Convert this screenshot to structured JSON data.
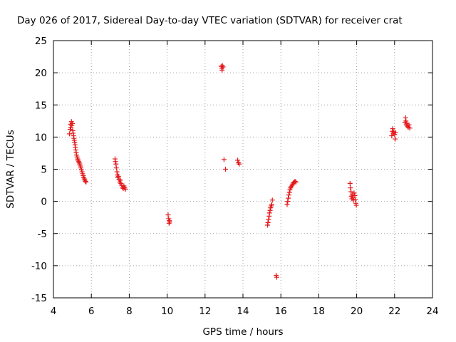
{
  "chart_data": {
    "type": "scatter",
    "title": "Day 026 of 2017, Sidereal Day-to-day VTEC variation (SDTVAR) for receiver crat",
    "xlabel": "GPS time / hours",
    "ylabel": "SDTVAR / TECUs",
    "xlim": [
      4,
      24
    ],
    "ylim": [
      -15,
      25
    ],
    "xticks": [
      4,
      6,
      8,
      10,
      12,
      14,
      16,
      18,
      20,
      22,
      24
    ],
    "yticks": [
      -15,
      -10,
      -5,
      0,
      5,
      10,
      15,
      20,
      25
    ],
    "grid": true,
    "marker": "+",
    "color": "#e41a1c",
    "series": [
      {
        "name": "SDTVAR",
        "points": [
          [
            4.85,
            10.5
          ],
          [
            4.88,
            11.2
          ],
          [
            4.9,
            12.0
          ],
          [
            4.92,
            11.5
          ],
          [
            4.95,
            12.4
          ],
          [
            4.97,
            11.8
          ],
          [
            5.0,
            12.1
          ],
          [
            5.02,
            11.0
          ],
          [
            5.04,
            10.6
          ],
          [
            5.06,
            10.2
          ],
          [
            5.08,
            9.8
          ],
          [
            5.1,
            9.5
          ],
          [
            5.12,
            9.2
          ],
          [
            5.14,
            8.8
          ],
          [
            5.16,
            8.4
          ],
          [
            5.18,
            8.0
          ],
          [
            5.2,
            7.6
          ],
          [
            5.22,
            7.2
          ],
          [
            5.25,
            6.9
          ],
          [
            5.28,
            6.6
          ],
          [
            5.3,
            6.4
          ],
          [
            5.33,
            6.2
          ],
          [
            5.36,
            6.0
          ],
          [
            5.39,
            5.8
          ],
          [
            5.42,
            5.5
          ],
          [
            5.45,
            5.2
          ],
          [
            5.48,
            4.9
          ],
          [
            5.51,
            4.6
          ],
          [
            5.54,
            4.3
          ],
          [
            5.57,
            4.0
          ],
          [
            5.6,
            3.7
          ],
          [
            5.63,
            3.5
          ],
          [
            5.66,
            3.3
          ],
          [
            5.69,
            3.1
          ],
          [
            5.72,
            3.0
          ],
          [
            7.25,
            6.6
          ],
          [
            7.27,
            6.2
          ],
          [
            7.3,
            5.8
          ],
          [
            7.32,
            5.2
          ],
          [
            7.35,
            4.6
          ],
          [
            7.38,
            4.1
          ],
          [
            7.4,
            3.7
          ],
          [
            7.43,
            3.9
          ],
          [
            7.46,
            3.4
          ],
          [
            7.5,
            3.0
          ],
          [
            7.53,
            3.3
          ],
          [
            7.56,
            2.8
          ],
          [
            7.6,
            2.5
          ],
          [
            7.64,
            2.2
          ],
          [
            7.68,
            2.0
          ],
          [
            7.72,
            2.4
          ],
          [
            7.76,
            2.1
          ],
          [
            7.8,
            1.9
          ],
          [
            10.05,
            -2.1
          ],
          [
            10.08,
            -2.7
          ],
          [
            10.11,
            -3.0
          ],
          [
            10.14,
            -3.2
          ],
          [
            10.1,
            -3.4
          ],
          [
            12.85,
            21.0
          ],
          [
            12.88,
            20.7
          ],
          [
            12.9,
            20.4
          ],
          [
            12.92,
            21.1
          ],
          [
            12.95,
            20.9
          ],
          [
            13.0,
            6.5
          ],
          [
            13.08,
            5.0
          ],
          [
            13.72,
            6.4
          ],
          [
            13.76,
            6.0
          ],
          [
            13.8,
            5.8
          ],
          [
            15.3,
            -3.7
          ],
          [
            15.32,
            -3.3
          ],
          [
            15.35,
            -2.8
          ],
          [
            15.38,
            -2.3
          ],
          [
            15.4,
            -1.8
          ],
          [
            15.43,
            -1.4
          ],
          [
            15.46,
            -1.0
          ],
          [
            15.49,
            -0.7
          ],
          [
            15.52,
            -0.5
          ],
          [
            15.55,
            0.2
          ],
          [
            15.75,
            -11.5
          ],
          [
            15.78,
            -11.8
          ],
          [
            16.33,
            -0.5
          ],
          [
            16.36,
            0.0
          ],
          [
            16.39,
            0.5
          ],
          [
            16.42,
            1.0
          ],
          [
            16.45,
            1.4
          ],
          [
            16.48,
            1.8
          ],
          [
            16.51,
            2.1
          ],
          [
            16.55,
            2.3
          ],
          [
            16.59,
            2.5
          ],
          [
            16.63,
            2.7
          ],
          [
            16.67,
            2.9
          ],
          [
            16.71,
            3.0
          ],
          [
            16.75,
            3.1
          ],
          [
            16.8,
            3.0
          ],
          [
            19.65,
            2.8
          ],
          [
            19.67,
            2.1
          ],
          [
            19.7,
            1.5
          ],
          [
            19.72,
            0.8
          ],
          [
            19.75,
            0.4
          ],
          [
            19.78,
            1.0
          ],
          [
            19.8,
            0.6
          ],
          [
            19.83,
            0.2
          ],
          [
            19.86,
            1.3
          ],
          [
            19.9,
            0.9
          ],
          [
            19.93,
            0.3
          ],
          [
            19.96,
            -0.3
          ],
          [
            19.98,
            -0.6
          ],
          [
            21.85,
            10.2
          ],
          [
            21.88,
            10.9
          ],
          [
            21.9,
            11.3
          ],
          [
            21.93,
            10.6
          ],
          [
            21.96,
            10.8
          ],
          [
            22.0,
            10.4
          ],
          [
            22.03,
            9.7
          ],
          [
            22.05,
            10.7
          ],
          [
            22.55,
            12.3
          ],
          [
            22.58,
            13.0
          ],
          [
            22.6,
            12.5
          ],
          [
            22.62,
            11.9
          ],
          [
            22.65,
            12.1
          ],
          [
            22.68,
            11.7
          ],
          [
            22.72,
            11.5
          ],
          [
            22.76,
            11.9
          ],
          [
            22.8,
            11.4
          ]
        ]
      }
    ]
  }
}
